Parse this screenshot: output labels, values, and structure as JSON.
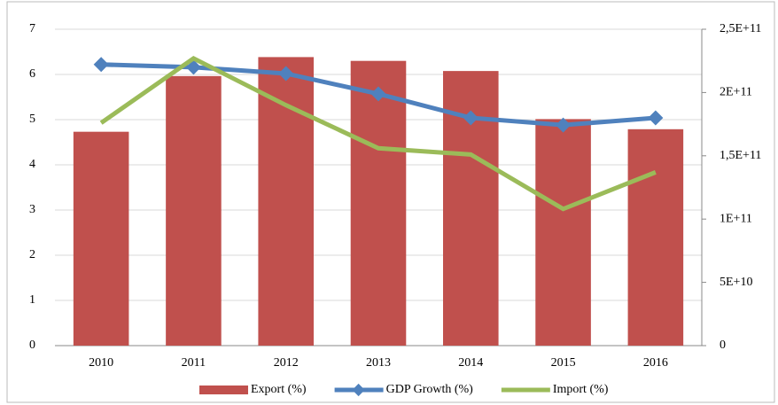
{
  "chart_data": {
    "type": "bar-line",
    "categories": [
      "2010",
      "2011",
      "2012",
      "2013",
      "2014",
      "2015",
      "2016"
    ],
    "series": [
      {
        "name": "Export (%)",
        "type": "bar",
        "axis": "y2",
        "color": "#c0504d",
        "values": [
          169000000000.0,
          213000000000.0,
          228000000000.0,
          225000000000.0,
          217000000000.0,
          179000000000.0,
          171000000000.0
        ]
      },
      {
        "name": "GDP Growth (%)",
        "type": "line",
        "marker": true,
        "color": "#4f81bd",
        "values": [
          6.22,
          6.16,
          6.02,
          5.57,
          5.04,
          4.88,
          5.04
        ]
      },
      {
        "name": "Import (%)",
        "type": "line",
        "axis": "y2",
        "color": "#9bbb59",
        "values": [
          176000000000.0,
          227000000000.0,
          190000000000.0,
          156000000000.0,
          151000000000.0,
          108000000000.0,
          137000000000.0
        ]
      }
    ],
    "ylim": [
      0,
      7
    ],
    "yticks": [
      0,
      1,
      2,
      3,
      4,
      5,
      6,
      7
    ],
    "y2lim": [
      0,
      250000000000.0
    ],
    "y2ticks": [
      0,
      {
        "value": 50000000000.0,
        "label": "5E+10"
      },
      {
        "value": 100000000000.0,
        "label": "1E+11"
      },
      {
        "value": 150000000000.0,
        "label": "1,5E+11"
      },
      {
        "value": 200000000000.0,
        "label": "2E+11"
      },
      {
        "value": 250000000000.0,
        "label": "2,5E+11"
      }
    ],
    "grid": true
  }
}
